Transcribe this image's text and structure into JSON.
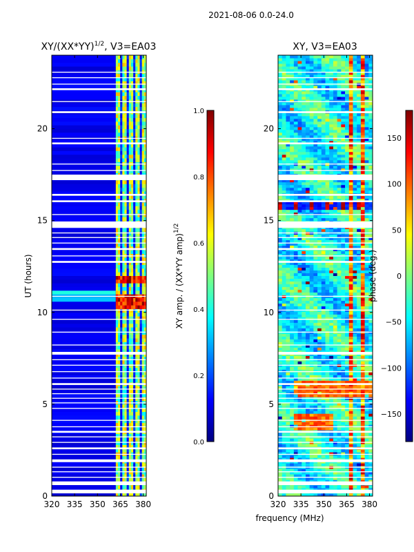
{
  "figure_title": "2021-08-06 0.0-24.0",
  "colors": {
    "jet": [
      "#00007f",
      "#0000ff",
      "#007fff",
      "#00ffff",
      "#7fff7f",
      "#ffff00",
      "#ff7f00",
      "#ff0000",
      "#7f0000"
    ],
    "background": "#00008f",
    "gap": "#ffffff"
  },
  "chart_data": [
    {
      "type": "heatmap",
      "title_main": "XY/(XX*YY)",
      "title_sup": "1/2",
      "title_rest": ", V3=EA03",
      "ylabel": "UT (hours)",
      "xlim": [
        320,
        382
      ],
      "ylim": [
        0,
        24
      ],
      "xticks": [
        320,
        335,
        350,
        365,
        380
      ],
      "yticks": [
        0,
        5,
        10,
        15,
        20
      ],
      "colorbar": {
        "label_main": "XY amp. / (XX*YY amp)",
        "label_sup": "1/2",
        "range": [
          0.0,
          1.0
        ],
        "ticks": [
          "0.0",
          "0.2",
          "0.4",
          "0.6",
          "0.8",
          "1.0"
        ]
      }
    },
    {
      "type": "heatmap",
      "title": "XY, V3=EA03",
      "xlabel": "frequency (MHz)",
      "xlim": [
        320,
        382
      ],
      "ylim": [
        0,
        24
      ],
      "xticks": [
        320,
        335,
        350,
        365,
        380
      ],
      "yticks": [
        0,
        5,
        10,
        15,
        20
      ],
      "colorbar": {
        "label": "phase (deg.)",
        "range": [
          -180,
          180
        ],
        "ticks": [
          "150",
          "100",
          "50",
          "0",
          "−50",
          "−100",
          "−150"
        ]
      }
    }
  ]
}
